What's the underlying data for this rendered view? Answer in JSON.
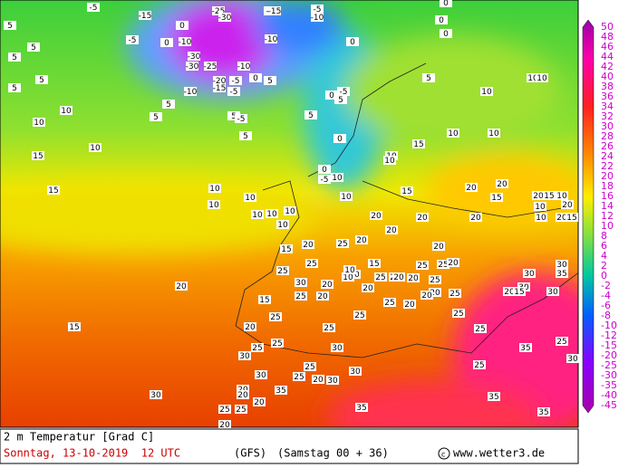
{
  "colorbar": {
    "labels": [
      50,
      48,
      46,
      44,
      42,
      40,
      38,
      36,
      34,
      32,
      30,
      28,
      26,
      24,
      22,
      20,
      18,
      16,
      14,
      12,
      10,
      8,
      6,
      4,
      2,
      0,
      -2,
      -4,
      -6,
      -8,
      -10,
      -12,
      -15,
      -20,
      -25,
      -30,
      -35,
      -40,
      -45
    ]
  },
  "map": {
    "labels": [
      -5,
      -15,
      -5,
      0,
      -10,
      0,
      -25,
      -30,
      -5,
      -15,
      -5,
      -10,
      -10,
      0,
      0,
      0,
      0,
      5,
      5,
      5,
      5,
      5,
      -30,
      -30,
      -25,
      -10,
      -20,
      -15,
      -5,
      -10,
      -5,
      5,
      5,
      5,
      -5,
      5,
      5,
      0,
      0,
      5,
      -5,
      5,
      0,
      5,
      10,
      10,
      10,
      10,
      10,
      10,
      15,
      15,
      10,
      10,
      15,
      10,
      10,
      0,
      -5,
      10,
      10,
      10,
      10,
      10,
      10,
      10,
      10,
      10,
      15,
      20,
      20,
      15,
      20,
      15,
      10,
      10,
      20,
      10,
      20,
      15,
      20,
      20,
      20,
      20,
      20,
      25,
      20,
      15,
      20,
      25,
      15,
      20,
      10,
      10,
      25,
      20,
      25,
      20,
      20,
      25,
      25,
      25,
      20,
      20,
      20,
      20,
      25,
      20,
      20,
      25,
      30,
      25,
      20,
      30,
      35,
      30,
      30,
      20,
      30,
      15,
      15,
      20,
      15,
      20,
      25,
      25,
      25,
      25,
      25,
      25,
      25,
      30,
      35,
      25,
      30,
      30,
      25,
      25,
      20,
      30,
      30,
      25,
      30,
      20,
      20,
      20,
      25,
      25,
      20,
      35,
      30,
      35,
      35,
      35
    ]
  },
  "footer": {
    "title": "2 m Temperatur [Grad C]",
    "date": "Sonntag, 13-10-2019  12 UTC",
    "model": "(GFS)",
    "run": "(Samstag 00 + 36)",
    "credit": "www.wetter3.de"
  }
}
